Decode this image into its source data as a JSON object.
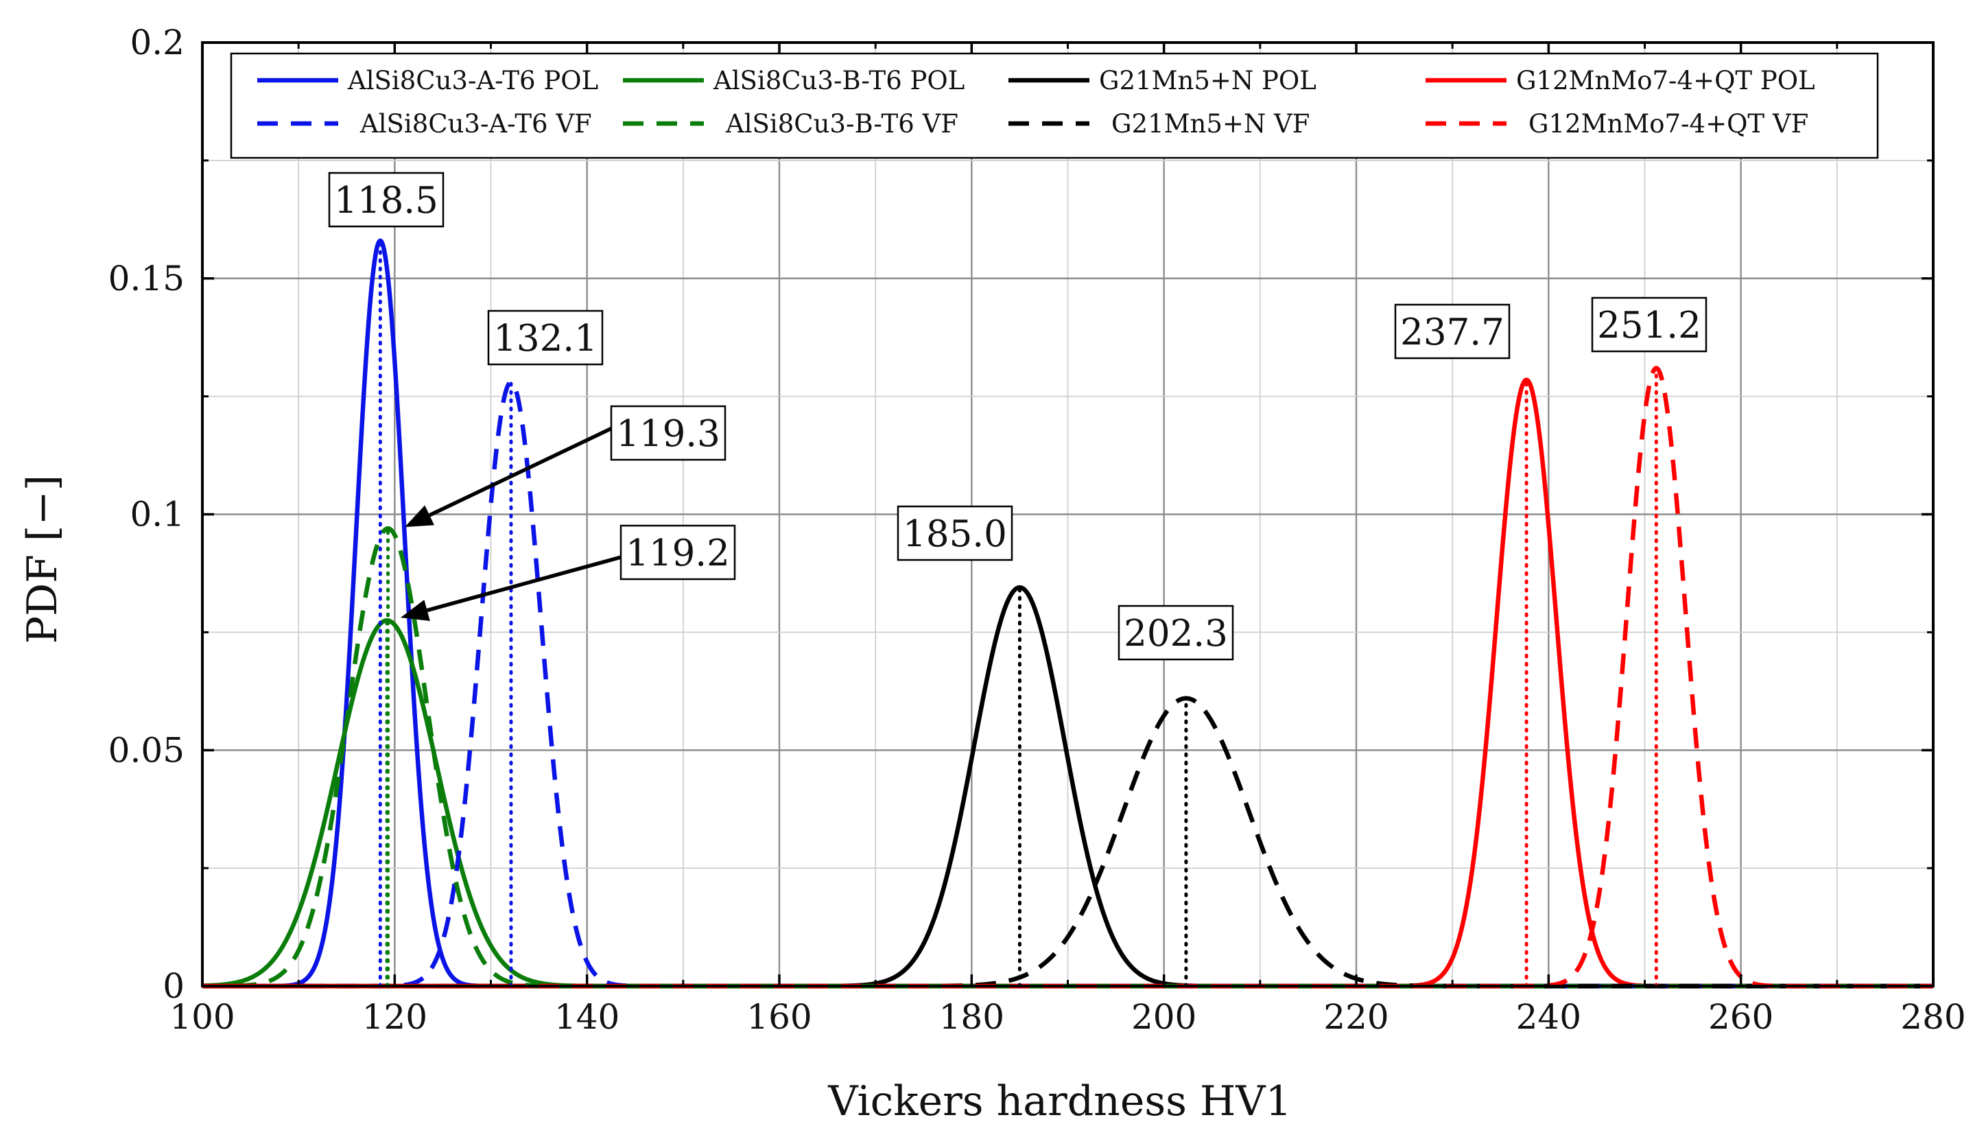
{
  "chart_data": {
    "type": "line",
    "title": "",
    "xlabel": "Vickers hardness HV1",
    "ylabel": "PDF [−]",
    "xlim": [
      100,
      280
    ],
    "ylim": [
      0,
      0.2
    ],
    "x_ticks": [
      100,
      120,
      140,
      160,
      180,
      200,
      220,
      240,
      260,
      280
    ],
    "y_ticks": [
      0,
      0.05,
      0.1,
      0.15,
      0.2
    ],
    "x_tick_labels": [
      "100",
      "120",
      "140",
      "160",
      "180",
      "200",
      "220",
      "240",
      "260",
      "280"
    ],
    "y_tick_labels": [
      "0",
      "0.05",
      "0.1",
      "0.15",
      "0.2"
    ],
    "grid": true,
    "legend_position": "top",
    "series": [
      {
        "name": "AlSi8Cu3-A-T6 POL",
        "color": "#0a14e6",
        "dash": "solid",
        "mean": 118.5,
        "peak": 0.158
      },
      {
        "name": "AlSi8Cu3-B-T6 POL",
        "color": "#0a7d0a",
        "dash": "solid",
        "mean": 119.2,
        "peak": 0.0775
      },
      {
        "name": "G21Mn5+N POL",
        "color": "#000000",
        "dash": "solid",
        "mean": 185.0,
        "peak": 0.0845
      },
      {
        "name": "G12MnMo7-4+QT POL",
        "color": "#ff0000",
        "dash": "solid",
        "mean": 237.7,
        "peak": 0.1285
      },
      {
        "name": "AlSi8Cu3-A-T6 VF",
        "color": "#0a14e6",
        "dash": "dashed",
        "mean": 132.1,
        "peak": 0.128
      },
      {
        "name": "AlSi8Cu3-B-T6 VF",
        "color": "#0a7d0a",
        "dash": "dashed",
        "mean": 119.3,
        "peak": 0.097
      },
      {
        "name": "G21Mn5+N VF",
        "color": "#000000",
        "dash": "dashed",
        "mean": 202.3,
        "peak": 0.061
      },
      {
        "name": "G12MnMo7-4+QT VF",
        "color": "#ff0000",
        "dash": "dashed",
        "mean": 251.2,
        "peak": 0.131
      }
    ],
    "annotations": [
      {
        "label": "118.5",
        "series": "AlSi8Cu3-A-T6 POL",
        "arrow": false
      },
      {
        "label": "132.1",
        "series": "AlSi8Cu3-A-T6 VF",
        "arrow": false
      },
      {
        "label": "119.3",
        "series": "AlSi8Cu3-B-T6 VF",
        "arrow": true
      },
      {
        "label": "119.2",
        "series": "AlSi8Cu3-B-T6 POL",
        "arrow": true
      },
      {
        "label": "185.0",
        "series": "G21Mn5+N POL",
        "arrow": false
      },
      {
        "label": "202.3",
        "series": "G21Mn5+N VF",
        "arrow": false
      },
      {
        "label": "237.7",
        "series": "G12MnMo7-4+QT POL",
        "arrow": false
      },
      {
        "label": "251.2",
        "series": "G12MnMo7-4+QT VF",
        "arrow": false
      }
    ]
  }
}
